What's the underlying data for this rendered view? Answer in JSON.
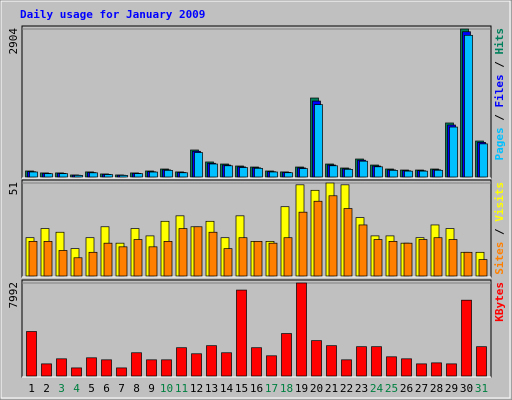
{
  "chart_data": [
    {
      "type": "bar",
      "title": "Daily usage for January 2009",
      "title_color": "#0000ff",
      "ylim": [
        0,
        2904
      ],
      "yticks": [
        2904
      ],
      "legend_separator": " / ",
      "series": [
        {
          "name": "Hits",
          "color": "#00805c",
          "values": [
            118,
            80,
            80,
            40,
            100,
            60,
            40,
            80,
            118,
            157,
            100,
            530,
            295,
            255,
            216,
            196,
            118,
            100,
            196,
            1550,
            255,
            177,
            353,
            235,
            157,
            137,
            137,
            157,
            1060,
            2904,
            706
          ]
        },
        {
          "name": "Files",
          "color": "#0000ff",
          "values": [
            105,
            70,
            72,
            35,
            88,
            52,
            35,
            71,
            104,
            140,
            89,
            505,
            270,
            235,
            198,
            180,
            105,
            90,
            178,
            1490,
            235,
            160,
            330,
            215,
            140,
            123,
            124,
            142,
            1020,
            2850,
            680
          ]
        },
        {
          "name": "Pages",
          "color": "#00c0ff",
          "values": [
            98,
            65,
            66,
            32,
            82,
            48,
            32,
            66,
            97,
            130,
            83,
            480,
            255,
            220,
            185,
            170,
            98,
            84,
            165,
            1420,
            220,
            150,
            310,
            200,
            130,
            115,
            115,
            132,
            980,
            2780,
            650
          ]
        }
      ]
    },
    {
      "type": "bar",
      "ylim": [
        0,
        51
      ],
      "yticks": [
        51
      ],
      "legend_separator": " / ",
      "series": [
        {
          "name": "Visits",
          "color": "#ffff00",
          "values": [
            21,
            26,
            24,
            15,
            21,
            27,
            18,
            26,
            22,
            30,
            33,
            27,
            30,
            21,
            33,
            19,
            19,
            38,
            50,
            47,
            51,
            50,
            32,
            22,
            22,
            18,
            21,
            28,
            26,
            13,
            13
          ]
        },
        {
          "name": "Sites",
          "color": "#ff8000",
          "values": [
            19,
            19,
            14,
            10,
            13,
            18,
            16,
            20,
            16,
            19,
            26,
            27,
            24,
            15,
            21,
            19,
            18,
            21,
            35,
            41,
            44,
            37,
            28,
            20,
            19,
            18,
            20,
            21,
            20,
            13,
            9
          ]
        }
      ]
    },
    {
      "type": "bar",
      "ylim": [
        0,
        7992
      ],
      "yticks": [
        7992
      ],
      "series": [
        {
          "name": "KBytes",
          "color": "#ff0000",
          "values": [
            3822,
            1042,
            1477,
            695,
            1564,
            1390,
            695,
            1998,
            1390,
            1390,
            2432,
            1911,
            2606,
            1998,
            7384,
            2432,
            1737,
            3648,
            7992,
            3040,
            2606,
            1390,
            2519,
            2519,
            1650,
            1477,
            1042,
            1129,
            1042,
            6515,
            2519
          ]
        }
      ],
      "categories": [
        "1",
        "2",
        "3",
        "4",
        "5",
        "6",
        "7",
        "8",
        "9",
        "10",
        "11",
        "12",
        "13",
        "14",
        "15",
        "16",
        "17",
        "18",
        "19",
        "20",
        "21",
        "22",
        "23",
        "24",
        "25",
        "26",
        "27",
        "28",
        "29",
        "30",
        "31"
      ],
      "category_colors": [
        "#000000",
        "#000000",
        "#008040",
        "#008040",
        "#000000",
        "#000000",
        "#000000",
        "#000000",
        "#000000",
        "#008040",
        "#008040",
        "#000000",
        "#000000",
        "#000000",
        "#000000",
        "#000000",
        "#008040",
        "#008040",
        "#000000",
        "#000000",
        "#000000",
        "#000000",
        "#000000",
        "#008040",
        "#008040",
        "#000000",
        "#000000",
        "#000000",
        "#000000",
        "#000000",
        "#008040"
      ]
    }
  ]
}
